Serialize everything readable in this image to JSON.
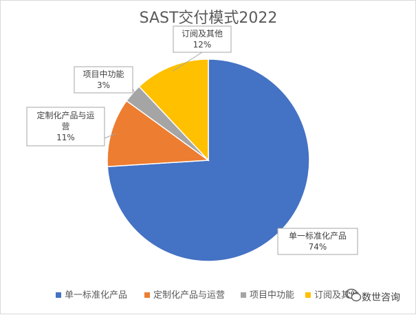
{
  "chart_data": {
    "type": "pie",
    "title": "SAST交付模式2022",
    "categories": [
      "单一标准化产品",
      "定制化产品与运营",
      "项目中功能",
      "订阅及其他"
    ],
    "values": [
      74,
      11,
      3,
      12
    ],
    "value_labels": [
      "74%",
      "11%",
      "3%",
      "12%"
    ],
    "colors": [
      "#4472c4",
      "#ed7d31",
      "#a5a5a5",
      "#ffc000"
    ],
    "legend_position": "bottom",
    "data_label_lines": [
      [
        "单一标准化产品"
      ],
      [
        "定制化产品与运",
        "营"
      ],
      [
        "项目中功能"
      ],
      [
        "订阅及其他"
      ]
    ]
  },
  "watermark": {
    "text": "数世咨询",
    "icon": "wechat-icon"
  }
}
